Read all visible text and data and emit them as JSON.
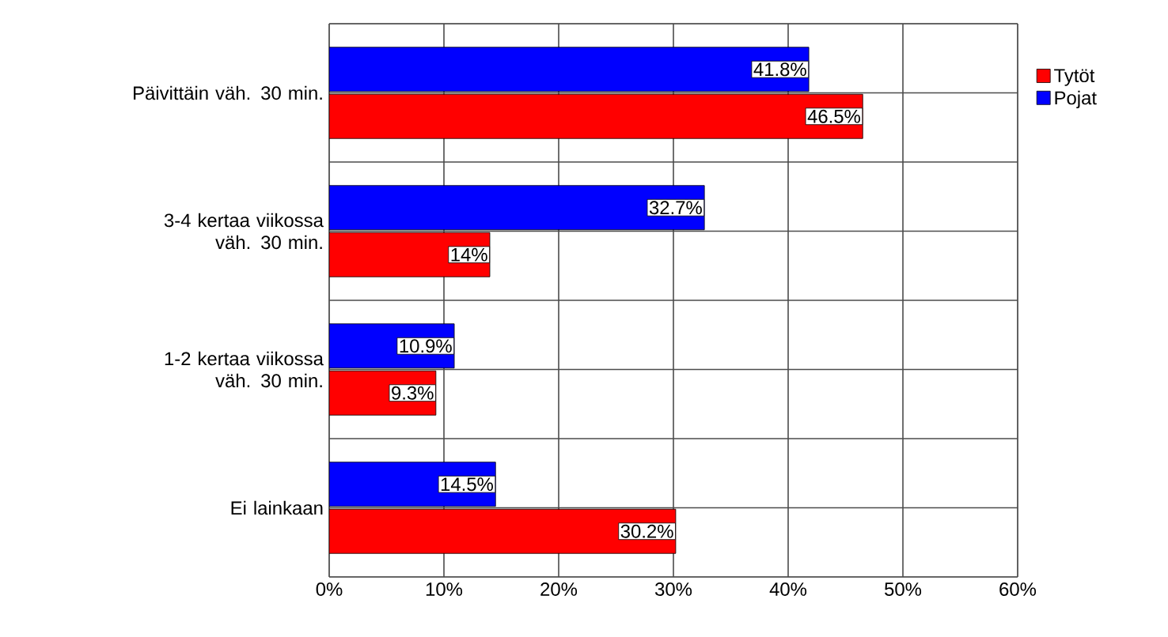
{
  "chart_data": {
    "type": "bar",
    "orientation": "horizontal",
    "categories": [
      "Päivittäin väh. 30 min.",
      "3-4 kertaa viikossa väh. 30 min.",
      "1-2 kertaa viikossa väh. 30 min.",
      "Ei lainkaan"
    ],
    "series": [
      {
        "name": "Tytöt",
        "color": "#ff0000",
        "values": [
          46.5,
          14,
          9.3,
          30.2
        ],
        "value_labels": [
          "46.5%",
          "14%",
          "9.3%",
          "30.2%"
        ]
      },
      {
        "name": "Pojat",
        "color": "#0000ff",
        "values": [
          41.8,
          32.7,
          10.9,
          14.5
        ],
        "value_labels": [
          "41.8%",
          "32.7%",
          "10.9%",
          "14.5%"
        ]
      }
    ],
    "xlim": [
      0,
      60
    ],
    "xticks": [
      {
        "value": 0,
        "label": "0%"
      },
      {
        "value": 10,
        "label": "10%"
      },
      {
        "value": 20,
        "label": "20%"
      },
      {
        "value": 30,
        "label": "30%"
      },
      {
        "value": 40,
        "label": "40%"
      },
      {
        "value": 50,
        "label": "50%"
      },
      {
        "value": 60,
        "label": "60%"
      }
    ],
    "grid": true,
    "legend": "right"
  }
}
